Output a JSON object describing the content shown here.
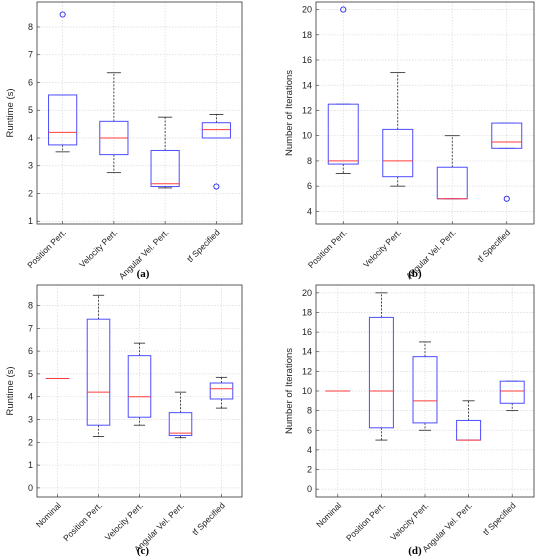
{
  "panels": [
    {
      "caption": "(a)"
    },
    {
      "caption": "(b)"
    },
    {
      "caption": "(c)"
    },
    {
      "caption": "(d)"
    }
  ],
  "colors": {
    "box": "#4d4dff",
    "median": "#ff3b3b",
    "whisker": "#222222",
    "outlier": "#2222ee",
    "grid": "#d9d9d9",
    "axis": "#333333"
  },
  "chart_data": [
    {
      "type": "box",
      "ylabel": "Runtime (s)",
      "ylim": [
        0.9,
        8.9
      ],
      "yticks": [
        1,
        2,
        3,
        4,
        5,
        6,
        7,
        8
      ],
      "grid": true,
      "categories": [
        "Position Pert.",
        "Velocity Pert.",
        "Angular Vel. Pert.",
        "tf Specified"
      ],
      "boxes": [
        {
          "q1": 3.75,
          "median": 4.2,
          "q3": 5.55,
          "whisker_low": 3.5,
          "whisker_high": 5.55,
          "outliers": [
            8.45
          ]
        },
        {
          "q1": 3.4,
          "median": 4.0,
          "q3": 4.6,
          "whisker_low": 2.75,
          "whisker_high": 6.35,
          "outliers": []
        },
        {
          "q1": 2.25,
          "median": 2.35,
          "q3": 3.55,
          "whisker_low": 2.2,
          "whisker_high": 4.75,
          "outliers": []
        },
        {
          "q1": 4.0,
          "median": 4.3,
          "q3": 4.55,
          "whisker_low": 4.0,
          "whisker_high": 4.85,
          "outliers": [
            2.25
          ]
        }
      ]
    },
    {
      "type": "box",
      "ylabel": "Number of Iterations",
      "ylim": [
        3,
        20.6
      ],
      "yticks": [
        4,
        6,
        8,
        10,
        12,
        14,
        16,
        18,
        20
      ],
      "grid": true,
      "categories": [
        "Position Pert.",
        "Velocity Pert.",
        "Angular Vel. Pert.",
        "tf Specified"
      ],
      "boxes": [
        {
          "q1": 7.75,
          "median": 8.0,
          "q3": 12.5,
          "whisker_low": 7.0,
          "whisker_high": 12.5,
          "outliers": [
            20
          ]
        },
        {
          "q1": 6.75,
          "median": 8.0,
          "q3": 10.5,
          "whisker_low": 6.0,
          "whisker_high": 15.0,
          "outliers": []
        },
        {
          "q1": 5.0,
          "median": 5.0,
          "q3": 7.5,
          "whisker_low": 5.0,
          "whisker_high": 10.0,
          "outliers": []
        },
        {
          "q1": 9.0,
          "median": 9.5,
          "q3": 11.0,
          "whisker_low": 9.0,
          "whisker_high": 11.0,
          "outliers": [
            5
          ]
        }
      ]
    },
    {
      "type": "box",
      "ylabel": "Runtime (s)",
      "ylim": [
        -0.4,
        8.9
      ],
      "yticks": [
        0,
        1,
        2,
        3,
        4,
        5,
        6,
        7,
        8
      ],
      "grid": true,
      "categories": [
        "Nominal",
        "Position Pert.",
        "Velocity Pert.",
        "Angular Vel. Pert.",
        "tf Specified"
      ],
      "boxes": [
        {
          "q1": 4.8,
          "median": 4.8,
          "q3": 4.8,
          "whisker_low": 4.8,
          "whisker_high": 4.8,
          "outliers": []
        },
        {
          "q1": 2.75,
          "median": 4.2,
          "q3": 7.4,
          "whisker_low": 2.25,
          "whisker_high": 8.45,
          "outliers": []
        },
        {
          "q1": 3.1,
          "median": 4.0,
          "q3": 5.8,
          "whisker_low": 2.75,
          "whisker_high": 6.35,
          "outliers": []
        },
        {
          "q1": 2.3,
          "median": 2.4,
          "q3": 3.3,
          "whisker_low": 2.2,
          "whisker_high": 4.2,
          "outliers": []
        },
        {
          "q1": 3.9,
          "median": 4.35,
          "q3": 4.6,
          "whisker_low": 3.5,
          "whisker_high": 4.85,
          "outliers": []
        }
      ]
    },
    {
      "type": "box",
      "ylabel": "Number of Iterations",
      "ylim": [
        -0.8,
        20.8
      ],
      "yticks": [
        0,
        2,
        4,
        6,
        8,
        10,
        12,
        14,
        16,
        18,
        20
      ],
      "grid": true,
      "categories": [
        "Nominal",
        "Position Pert.",
        "Velocity Pert.",
        "Angular Vel. Pert.",
        "tf Specified"
      ],
      "boxes": [
        {
          "q1": 10.0,
          "median": 10.0,
          "q3": 10.0,
          "whisker_low": 10.0,
          "whisker_high": 10.0,
          "outliers": []
        },
        {
          "q1": 6.25,
          "median": 10.0,
          "q3": 17.5,
          "whisker_low": 5.0,
          "whisker_high": 20.0,
          "outliers": []
        },
        {
          "q1": 6.75,
          "median": 9.0,
          "q3": 13.5,
          "whisker_low": 6.0,
          "whisker_high": 15.0,
          "outliers": []
        },
        {
          "q1": 5.0,
          "median": 5.0,
          "q3": 7.0,
          "whisker_low": 5.0,
          "whisker_high": 9.0,
          "outliers": []
        },
        {
          "q1": 8.75,
          "median": 10.0,
          "q3": 11.0,
          "whisker_low": 8.0,
          "whisker_high": 11.0,
          "outliers": []
        }
      ]
    }
  ]
}
